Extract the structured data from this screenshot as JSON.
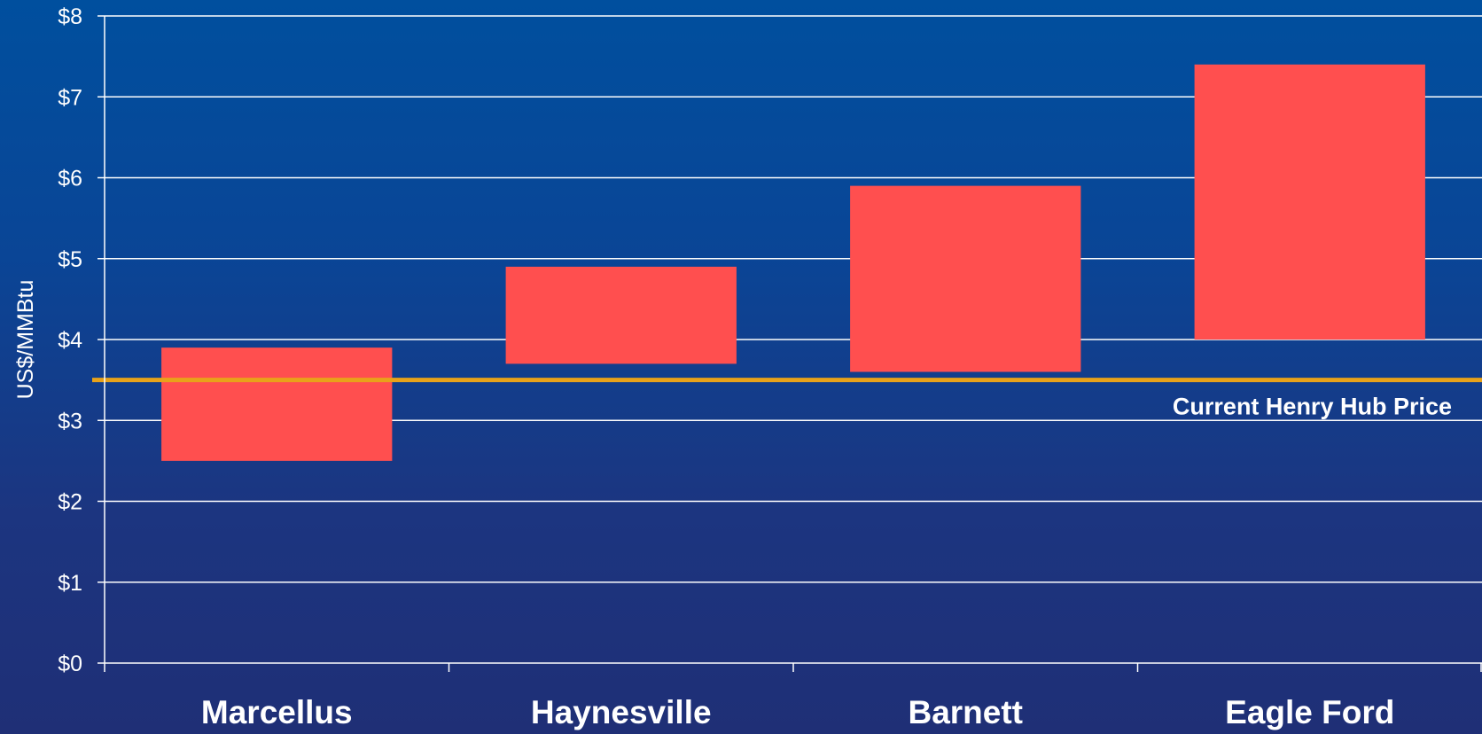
{
  "chart_data": {
    "type": "bar",
    "subtype": "floating-range",
    "categories": [
      "Marcellus",
      "Haynesville",
      "Barnett",
      "Eagle Ford"
    ],
    "series": [
      {
        "ranges": [
          [
            2.5,
            3.9
          ],
          [
            3.7,
            4.9
          ],
          [
            3.6,
            5.9
          ],
          [
            4.0,
            7.4
          ]
        ]
      }
    ],
    "ylabel": "US$/MMBtu",
    "ylim": [
      0,
      8
    ],
    "yticks": [
      0,
      1,
      2,
      3,
      4,
      5,
      6,
      7,
      8
    ],
    "ytick_labels": [
      "$0",
      "$1",
      "$2",
      "$3",
      "$4",
      "$5",
      "$6",
      "$7",
      "$8"
    ],
    "grid": true,
    "reference_line": {
      "value": 3.5,
      "label": "Current Henry Hub Price"
    },
    "colors": {
      "bar": "#ff4f4f",
      "reference_line": "#e8a21a",
      "grid": "#ffffff",
      "text": "#ffffff"
    }
  }
}
